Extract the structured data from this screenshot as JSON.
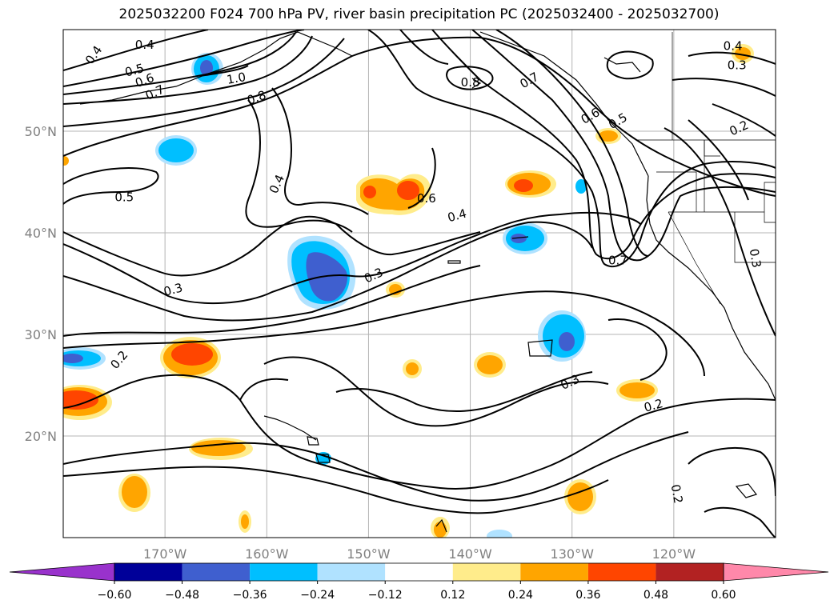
{
  "title": "2025032200 F024 700 hPa PV, river basin precipitation PC (2025032400 - 2025032700)",
  "map": {
    "projection": "cylindrical",
    "lon_range": [
      -180,
      -110
    ],
    "lat_range": [
      10,
      60
    ],
    "lon_ticks": [
      {
        "lon": -170,
        "label": "170°W"
      },
      {
        "lon": -160,
        "label": "160°W"
      },
      {
        "lon": -150,
        "label": "150°W"
      },
      {
        "lon": -140,
        "label": "140°W"
      },
      {
        "lon": -130,
        "label": "130°W"
      },
      {
        "lon": -120,
        "label": "120°W"
      }
    ],
    "lat_ticks": [
      {
        "lat": 20,
        "label": "20°N"
      },
      {
        "lat": 30,
        "label": "30°N"
      },
      {
        "lat": 40,
        "label": "40°N"
      },
      {
        "lat": 50,
        "label": "50°N"
      }
    ],
    "grid": true
  },
  "contour_labels": [
    {
      "text": "0.4",
      "lon": -177,
      "lat": 57.5,
      "rot": -55
    },
    {
      "text": "0.4",
      "lon": -172,
      "lat": 58.5,
      "rot": 0
    },
    {
      "text": "0.5",
      "lon": -173,
      "lat": 56.0,
      "rot": -15
    },
    {
      "text": "0.6",
      "lon": -172,
      "lat": 55.0,
      "rot": -20
    },
    {
      "text": "0.7",
      "lon": -171,
      "lat": 53.8,
      "rot": -25
    },
    {
      "text": "1.0",
      "lon": -163,
      "lat": 55.2,
      "rot": -10
    },
    {
      "text": "0.8",
      "lon": -161,
      "lat": 53.3,
      "rot": -20
    },
    {
      "text": "0.8",
      "lon": -140,
      "lat": 54.8,
      "rot": 0
    },
    {
      "text": "0.7",
      "lon": -134.2,
      "lat": 55.0,
      "rot": -30
    },
    {
      "text": "0.5",
      "lon": -125.5,
      "lat": 51.0,
      "rot": -30
    },
    {
      "text": "0.6",
      "lon": -128.2,
      "lat": 51.5,
      "rot": -30
    },
    {
      "text": "0.4",
      "lon": -114.2,
      "lat": 58.4,
      "rot": 0
    },
    {
      "text": "0.3",
      "lon": -113.8,
      "lat": 56.5,
      "rot": 0
    },
    {
      "text": "0.2",
      "lon": -113.6,
      "lat": 50.3,
      "rot": -25
    },
    {
      "text": "0.4",
      "lon": -159,
      "lat": 44.8,
      "rot": -65
    },
    {
      "text": "0.5",
      "lon": -174,
      "lat": 43.5,
      "rot": 0
    },
    {
      "text": "0.6",
      "lon": -144.3,
      "lat": 43.4,
      "rot": 0
    },
    {
      "text": "0.4",
      "lon": -141.3,
      "lat": 41.7,
      "rot": -15
    },
    {
      "text": "0.3",
      "lon": -149.5,
      "lat": 35.8,
      "rot": -25
    },
    {
      "text": "0.3",
      "lon": -169.2,
      "lat": 34.4,
      "rot": -15
    },
    {
      "text": "0.7",
      "lon": -125.5,
      "lat": 37.3,
      "rot": 0
    },
    {
      "text": "0.3",
      "lon": -112,
      "lat": 37.5,
      "rot": 80
    },
    {
      "text": "0.2",
      "lon": -174.5,
      "lat": 27.5,
      "rot": -50
    },
    {
      "text": "0.3",
      "lon": -130.2,
      "lat": 25.3,
      "rot": -25
    },
    {
      "text": "0.2",
      "lon": -122,
      "lat": 23.0,
      "rot": -15
    },
    {
      "text": "0.2",
      "lon": -119.7,
      "lat": 14.3,
      "rot": 80
    }
  ],
  "colorbar": {
    "ticks": [
      "−0.60",
      "−0.48",
      "−0.36",
      "−0.24",
      "−0.12",
      "0.12",
      "0.24",
      "0.36",
      "0.48",
      "0.60"
    ],
    "under_color": "#9932cc",
    "over_color": "#ff88aa",
    "colors": [
      "#000099",
      "#3f5fcf",
      "#00bfff",
      "#b0e2ff",
      "#ffffff",
      "#ffec8b",
      "#ffa500",
      "#ff4500",
      "#b22222"
    ]
  }
}
